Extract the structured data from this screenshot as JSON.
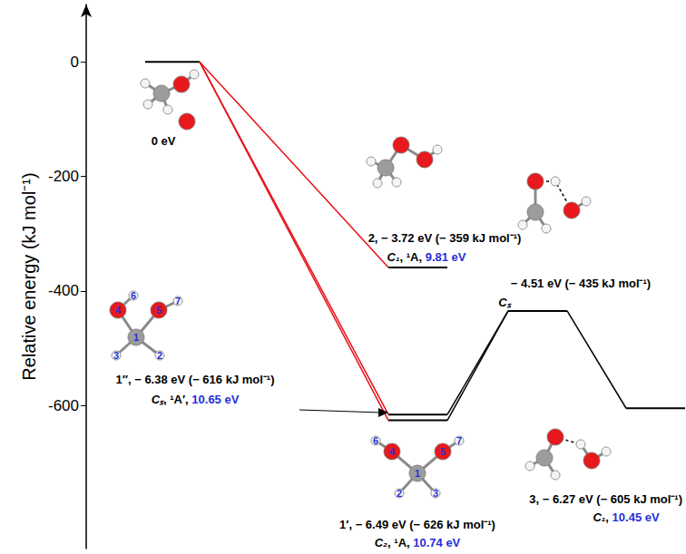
{
  "chart_data": {
    "type": "energy_diagram",
    "y_label": "Relative energy (kJ mol⁻¹)",
    "ylim": [
      -850,
      100
    ],
    "yticks": [
      -600,
      -400,
      -200,
      0
    ],
    "tick_labels": "y",
    "grid": false,
    "levels": [
      {
        "energy": 0,
        "text": "0 eV"
      },
      {
        "energy": -359,
        "text": "2, − 3.72 eV (− 359 kJ mol⁻¹)",
        "subtext": "C₁, ¹A, 9.81 eV"
      },
      {
        "energy": -616,
        "text": "1″, − 6.38 eV (− 616 kJ mol⁻¹)",
        "subtext": "Cₛ, ¹A′, 10.65 eV",
        "atom_numbers": [
          "1",
          "2",
          "3",
          "4",
          "5",
          "6",
          "7"
        ]
      },
      {
        "energy": -626,
        "text": "1′, − 6.49 eV (− 626 kJ mol⁻¹)",
        "subtext": "C₂, ¹A, 10.74 eV",
        "atom_numbers": [
          "1",
          "2",
          "3",
          "4",
          "5",
          "6",
          "7"
        ]
      },
      {
        "energy": -435,
        "text": "− 4.51 eV (− 435 kJ mol⁻¹)",
        "subtext": "Cₛ"
      },
      {
        "energy": -605,
        "text": "3, − 6.27 eV (− 605 kJ mol⁻¹)",
        "subtext": "C₁, 10.45 eV"
      }
    ],
    "connections": [
      {
        "from": 0,
        "to": 1,
        "color": "#e8101a"
      },
      {
        "from": 0,
        "to": 2,
        "color": "#e8101a"
      },
      {
        "from": 0,
        "to": 3,
        "color": "#e8101a"
      },
      {
        "from": 2,
        "to": 4,
        "color": "#000000"
      },
      {
        "from": 3,
        "to": 4,
        "color": "#000000"
      },
      {
        "from": 4,
        "to": 5,
        "color": "#000000"
      }
    ]
  }
}
